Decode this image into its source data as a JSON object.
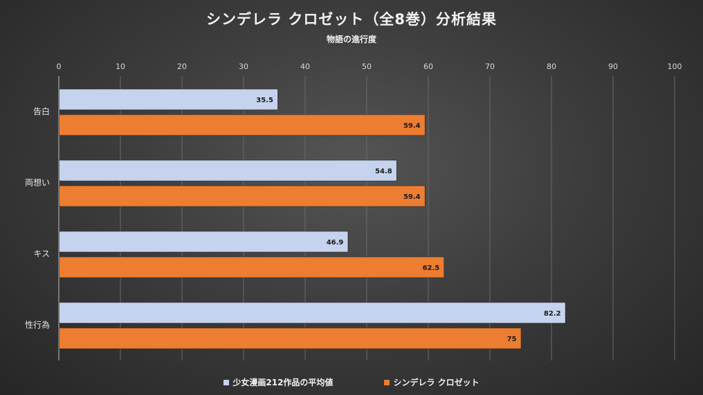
{
  "chart_data": {
    "type": "bar",
    "orientation": "horizontal",
    "title": "シンデレラ クロゼット（全8巻）分析結果",
    "subtitle": "物語の進行度",
    "categories": [
      "告白",
      "両想い",
      "キス",
      "性行為"
    ],
    "series": [
      {
        "name": "少女漫画212作品の平均値",
        "values": [
          35.5,
          54.8,
          46.9,
          82.2
        ],
        "color": "#c5d3ee"
      },
      {
        "name": "シンデレラ クロゼット",
        "values": [
          59.4,
          59.4,
          62.5,
          75
        ],
        "color": "#ed7d31"
      }
    ],
    "xlim": [
      0,
      100
    ],
    "xticks": [
      0,
      10,
      20,
      30,
      40,
      50,
      60,
      70,
      80,
      90,
      100
    ],
    "grid": true,
    "axis_position": "top",
    "legend_position": "bottom"
  }
}
